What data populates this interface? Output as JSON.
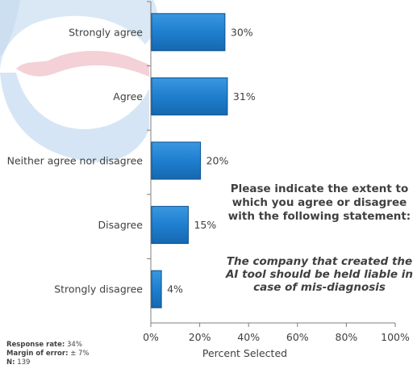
{
  "chart_data": {
    "type": "bar",
    "orientation": "horizontal",
    "categories": [
      "Strongly agree",
      "Agree",
      "Neither agree nor disagree",
      "Disagree",
      "Strongly disagree"
    ],
    "values": [
      30,
      31,
      20,
      15,
      4
    ],
    "data_labels": [
      "30%",
      "31%",
      "20%",
      "15%",
      "4%"
    ],
    "xlabel": "Percent Selected",
    "xlim": [
      0,
      100
    ],
    "xticks": [
      "0%",
      "20%",
      "40%",
      "60%",
      "80%",
      "100%"
    ],
    "grid": false,
    "colors": {
      "bar": "#1f7fcf",
      "bar_edge": "#0d4f8f",
      "axis": "#7f7f7f",
      "text": "#404040"
    }
  },
  "question": {
    "prompt": "Please indicate the extent to which you agree or disagree with the following statement:",
    "statement": "The company that created the AI tool should be held liable in case of mis-diagnosis"
  },
  "footer": {
    "response_rate_label": "Response rate:",
    "response_rate_value": "34%",
    "margin_label": "Margin of error:",
    "margin_value": "± 7%",
    "n_label": "N:",
    "n_value": "139"
  }
}
